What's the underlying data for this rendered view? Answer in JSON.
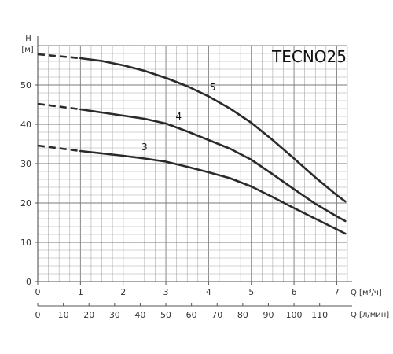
{
  "chart_data": {
    "type": "line",
    "title": "TECNO25",
    "ylabel": "H",
    "yunit": "[м]",
    "xlabel": "Q [м³/ч]",
    "x2label": "Q [л/мин]",
    "xlim": [
      0,
      7.25
    ],
    "ylim": [
      0,
      60
    ],
    "x_ticks": [
      0,
      1,
      2,
      3,
      4,
      5,
      6,
      7
    ],
    "y_ticks": [
      0,
      10,
      20,
      30,
      40,
      50
    ],
    "x2_ticks": [
      0,
      10,
      20,
      30,
      40,
      50,
      60,
      70,
      80,
      90,
      100,
      110
    ],
    "grid": true,
    "series": [
      {
        "name": "5",
        "dashed": {
          "x": [
            0,
            1.0
          ],
          "y": [
            57.8,
            56.8
          ]
        },
        "x": [
          1.0,
          1.5,
          2.0,
          2.5,
          3.0,
          3.5,
          4.0,
          4.5,
          5.0,
          5.5,
          6.0,
          6.5,
          7.0,
          7.2
        ],
        "y": [
          56.8,
          56.1,
          55.0,
          53.6,
          51.8,
          49.7,
          47.1,
          44.0,
          40.4,
          36.0,
          31.3,
          26.5,
          22.0,
          20.4
        ]
      },
      {
        "name": "4",
        "dashed": {
          "x": [
            0,
            1.0
          ],
          "y": [
            45.2,
            43.8
          ]
        },
        "x": [
          1.0,
          1.5,
          2.0,
          2.5,
          3.0,
          3.5,
          4.0,
          4.5,
          5.0,
          5.5,
          6.0,
          6.5,
          7.0,
          7.2
        ],
        "y": [
          43.8,
          43.0,
          42.2,
          41.4,
          40.2,
          38.2,
          36.0,
          33.8,
          31.0,
          27.3,
          23.5,
          19.8,
          16.6,
          15.4
        ]
      },
      {
        "name": "3",
        "dashed": {
          "x": [
            0,
            1.0
          ],
          "y": [
            34.6,
            33.2
          ]
        },
        "x": [
          1.0,
          1.5,
          2.0,
          2.5,
          3.0,
          3.5,
          4.0,
          4.5,
          5.0,
          5.5,
          6.0,
          6.5,
          7.0,
          7.2
        ],
        "y": [
          33.2,
          32.6,
          32.0,
          31.3,
          30.5,
          29.2,
          27.8,
          26.3,
          24.2,
          21.5,
          18.7,
          16.0,
          13.3,
          12.2
        ]
      }
    ],
    "curve_labels": [
      {
        "text": "5",
        "x": 4.1,
        "y": 48.6
      },
      {
        "text": "4",
        "x": 3.3,
        "y": 41.2
      },
      {
        "text": "3",
        "x": 2.5,
        "y": 33.4
      }
    ]
  }
}
